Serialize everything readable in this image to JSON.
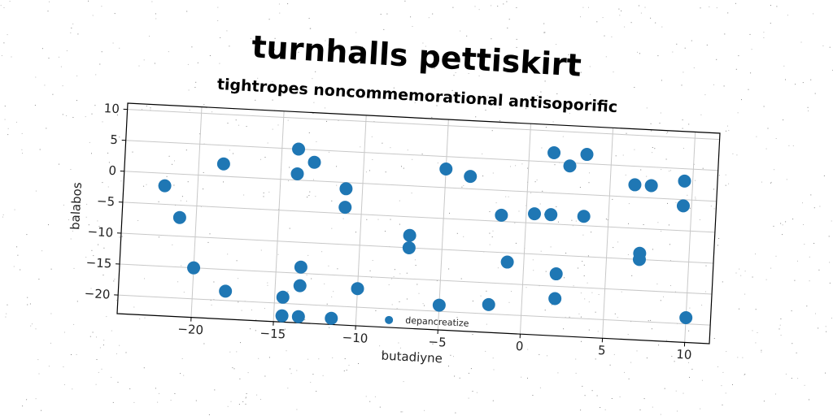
{
  "chart_data": {
    "type": "scatter",
    "title": "turnhalls pettiskirt",
    "subtitle": "tightropes noncommemorational antisoporific",
    "xlabel": "butadiyne",
    "ylabel": "balabos",
    "xlim": [
      -24.5,
      11.5
    ],
    "ylim": [
      -23,
      11
    ],
    "xticks": [
      -20,
      -15,
      -10,
      -5,
      0,
      5,
      10
    ],
    "yticks": [
      10,
      5,
      0,
      -5,
      -10,
      -15,
      -20
    ],
    "grid": true,
    "legend_position": "lower center",
    "color": "#1f77b4",
    "series": [
      {
        "name": "depancreatize",
        "points": [
          [
            -22.0,
            -2.0
          ],
          [
            -21.0,
            -7.0
          ],
          [
            -20.0,
            -15.0
          ],
          [
            -18.5,
            2.0
          ],
          [
            -18.0,
            -18.5
          ],
          [
            -14.0,
            5.0
          ],
          [
            -14.0,
            1.0
          ],
          [
            -13.0,
            3.0
          ],
          [
            -14.5,
            -19.0
          ],
          [
            -14.5,
            -22.0
          ],
          [
            -13.5,
            -14.0
          ],
          [
            -13.5,
            -17.0
          ],
          [
            -13.5,
            -22.0
          ],
          [
            -11.0,
            -1.0
          ],
          [
            -11.0,
            -4.0
          ],
          [
            -10.0,
            -17.0
          ],
          [
            -11.5,
            -22.0
          ],
          [
            -7.0,
            -8.0
          ],
          [
            -7.0,
            -10.0
          ],
          [
            -5.0,
            3.0
          ],
          [
            -3.5,
            2.0
          ],
          [
            -5.0,
            -19.0
          ],
          [
            -1.5,
            -4.0
          ],
          [
            -2.0,
            -18.5
          ],
          [
            -1.0,
            -11.5
          ],
          [
            0.5,
            -3.5
          ],
          [
            1.5,
            -3.5
          ],
          [
            1.5,
            6.5
          ],
          [
            2.5,
            4.5
          ],
          [
            3.5,
            6.5
          ],
          [
            3.5,
            -3.5
          ],
          [
            2.0,
            -13.0
          ],
          [
            2.0,
            -17.0
          ],
          [
            6.5,
            2.0
          ],
          [
            7.5,
            2.0
          ],
          [
            9.5,
            3.0
          ],
          [
            9.5,
            -1.0
          ],
          [
            7.0,
            -9.0
          ],
          [
            7.0,
            -10.0
          ],
          [
            10.0,
            -19.0
          ]
        ]
      }
    ]
  }
}
